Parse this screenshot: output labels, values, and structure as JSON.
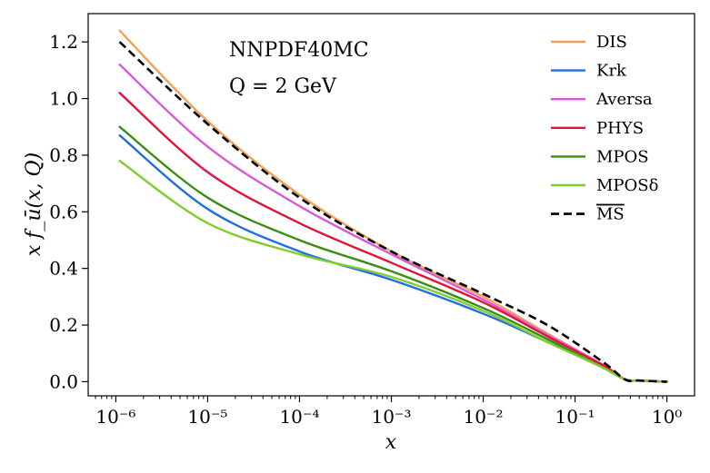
{
  "chart_data": {
    "type": "line",
    "title": "",
    "annotations": [
      "NNPDF40MC",
      "Q = 2 GeV"
    ],
    "xlabel": "x",
    "ylabel": "x f_ū(x, Q)",
    "xscale": "log",
    "xlim": [
      5e-07,
      2
    ],
    "ylim": [
      -0.05,
      1.3
    ],
    "x_ticks": [
      {
        "value": 1e-06,
        "label": "10⁻⁶"
      },
      {
        "value": 1e-05,
        "label": "10⁻⁵"
      },
      {
        "value": 0.0001,
        "label": "10⁻⁴"
      },
      {
        "value": 0.001,
        "label": "10⁻³"
      },
      {
        "value": 0.01,
        "label": "10⁻²"
      },
      {
        "value": 0.1,
        "label": "10⁻¹"
      },
      {
        "value": 1,
        "label": "10⁰"
      }
    ],
    "y_ticks": [
      {
        "value": 0.0,
        "label": "0.0"
      },
      {
        "value": 0.2,
        "label": "0.2"
      },
      {
        "value": 0.4,
        "label": "0.4"
      },
      {
        "value": 0.6,
        "label": "0.6"
      },
      {
        "value": 0.8,
        "label": "0.8"
      },
      {
        "value": 1.0,
        "label": "1.0"
      },
      {
        "value": 1.2,
        "label": "1.2"
      }
    ],
    "legend_position": "top-right",
    "x": [
      1.1e-06,
      1e-05,
      0.0001,
      0.001,
      0.01,
      0.05,
      0.2,
      0.35,
      0.5,
      1.0
    ],
    "series": [
      {
        "name": "DIS",
        "color": "#f5a05a",
        "dash": "solid",
        "values": [
          1.24,
          0.92,
          0.66,
          0.46,
          0.3,
          0.17,
          0.06,
          0.008,
          0.004,
          0.0
        ]
      },
      {
        "name": "Krk",
        "color": "#1f6fdc",
        "dash": "solid",
        "values": [
          0.87,
          0.61,
          0.46,
          0.36,
          0.24,
          0.14,
          0.05,
          0.008,
          0.004,
          0.0
        ]
      },
      {
        "name": "Aversa",
        "color": "#d85ad8",
        "dash": "solid",
        "values": [
          1.12,
          0.83,
          0.62,
          0.45,
          0.29,
          0.165,
          0.06,
          0.008,
          0.004,
          0.0
        ]
      },
      {
        "name": "PHYS",
        "color": "#e0143c",
        "dash": "solid",
        "values": [
          1.02,
          0.74,
          0.56,
          0.42,
          0.28,
          0.16,
          0.058,
          0.008,
          0.004,
          0.0
        ]
      },
      {
        "name": "MPOS",
        "color": "#3a8c14",
        "dash": "solid",
        "values": [
          0.9,
          0.65,
          0.5,
          0.39,
          0.26,
          0.15,
          0.05,
          0.008,
          0.004,
          0.0
        ]
      },
      {
        "name": "MPOSδ",
        "color": "#82cc30",
        "dash": "solid",
        "values": [
          0.78,
          0.56,
          0.45,
          0.37,
          0.25,
          0.14,
          0.05,
          0.008,
          0.004,
          0.0
        ]
      },
      {
        "name": "MS",
        "overline": true,
        "color": "#000000",
        "dash": "dashed",
        "values": [
          1.2,
          0.91,
          0.65,
          0.46,
          0.31,
          0.2,
          0.07,
          0.008,
          0.004,
          0.0
        ]
      }
    ]
  }
}
